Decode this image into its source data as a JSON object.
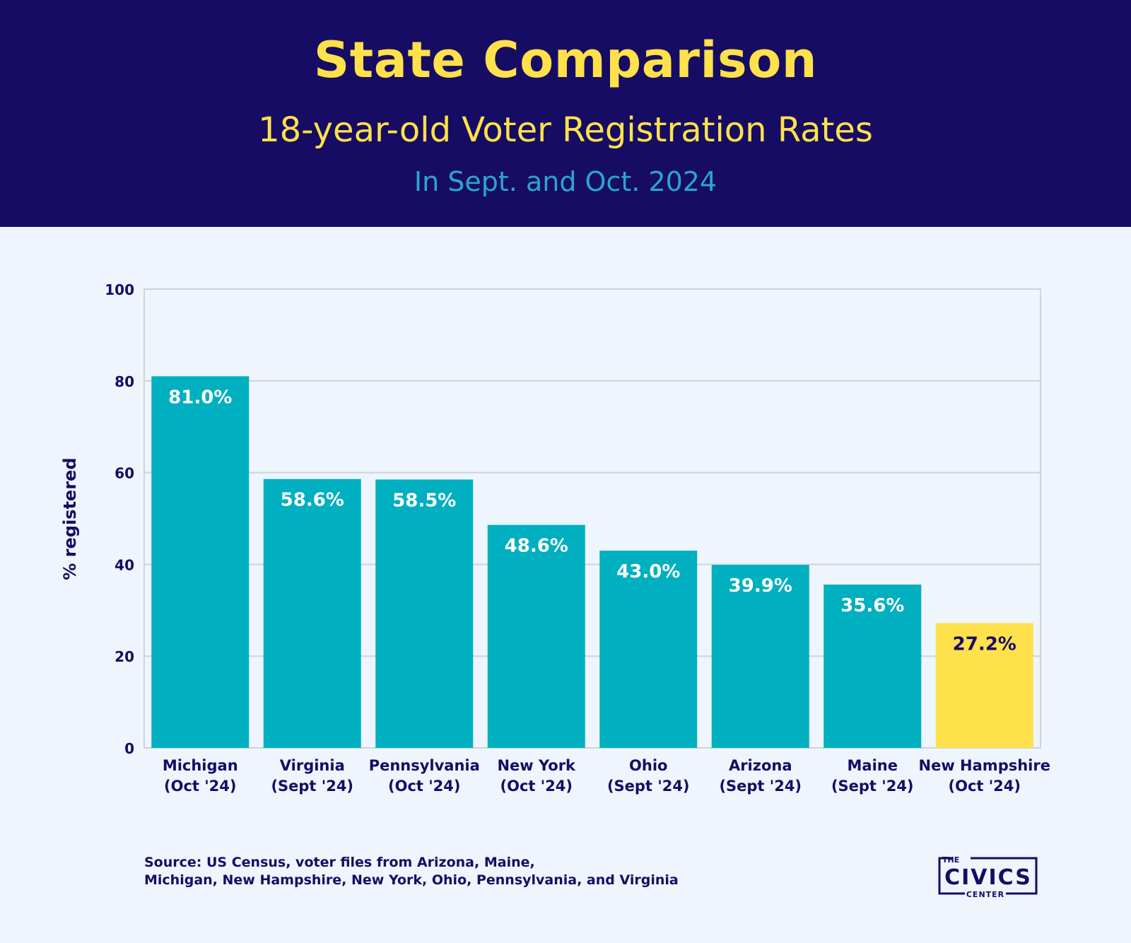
{
  "header": {
    "title": "State Comparison",
    "subtitle": "18-year-old Voter Registration Rates",
    "subtitle2": "In Sept. and Oct. 2024"
  },
  "colors": {
    "header_bg": "#160c63",
    "title": "#ffe14b",
    "bar": "#00b0c0",
    "highlight_bar": "#ffe14b",
    "background": "#eef5fc",
    "text": "#160c63"
  },
  "chart_data": {
    "type": "bar",
    "ylabel": "% registered",
    "ylim": [
      0,
      100
    ],
    "yticks": [
      0,
      20,
      40,
      60,
      80,
      100
    ],
    "grid": true,
    "categories": [
      [
        "Michigan",
        "(Oct '24)"
      ],
      [
        "Virginia",
        "(Sept '24)"
      ],
      [
        "Pennsylvania",
        "(Oct '24)"
      ],
      [
        "New York",
        "(Oct '24)"
      ],
      [
        "Ohio",
        "(Sept '24)"
      ],
      [
        "Arizona",
        "(Sept '24)"
      ],
      [
        "Maine",
        "(Sept '24)"
      ],
      [
        "New Hampshire",
        "(Oct '24)"
      ]
    ],
    "values": [
      81.0,
      58.6,
      58.5,
      48.6,
      43.0,
      39.9,
      35.6,
      27.2
    ],
    "data_labels": [
      "81.0%",
      "58.6%",
      "58.5%",
      "48.6%",
      "43.0%",
      "39.9%",
      "35.6%",
      "27.2%"
    ],
    "highlight_index": 7
  },
  "source": {
    "line1": "Source: US Census, voter files from Arizona, Maine,",
    "line2": "Michigan, New Hampshire, New York, Ohio, Pennsylvania, and Virginia"
  },
  "logo": {
    "the": "THE",
    "main": "CIVICS",
    "center": "CENTER"
  }
}
